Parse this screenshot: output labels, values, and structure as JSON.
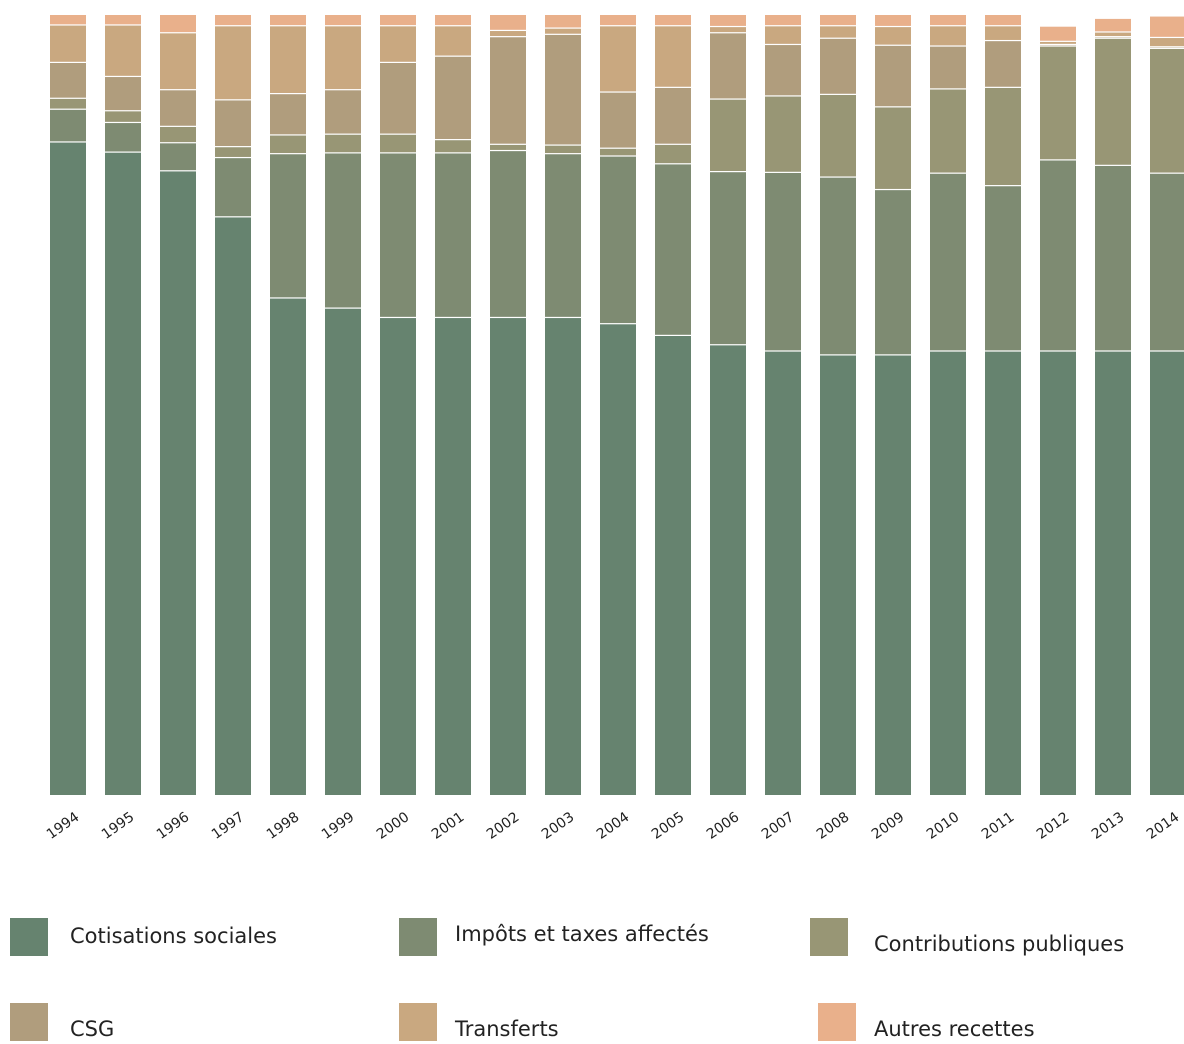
{
  "chart_data": {
    "type": "bar",
    "stacked": true,
    "normalized": true,
    "categories": [
      "1994",
      "1995",
      "1996",
      "1997",
      "1998",
      "1999",
      "2000",
      "2001",
      "2002",
      "2003",
      "2004",
      "2005",
      "2006",
      "2007",
      "2008",
      "2009",
      "2010",
      "2011",
      "2012",
      "2013",
      "2014"
    ],
    "series": [
      {
        "name": "Cotisations sociales",
        "color": "#66836f",
        "values": [
          83.8,
          82.5,
          80.1,
          74.2,
          63.8,
          62.5,
          61.3,
          61.3,
          61.3,
          61.3,
          60.5,
          59.0,
          57.8,
          57.0,
          56.5,
          56.5,
          57.0,
          57.0,
          57.0,
          57.0,
          57.0
        ]
      },
      {
        "name": "Impôts et taxes affectés",
        "color": "#7e8b72",
        "values": [
          4.2,
          3.8,
          3.6,
          7.6,
          18.5,
          19.9,
          21.1,
          21.1,
          21.4,
          21.0,
          21.5,
          22.0,
          22.2,
          22.9,
          22.8,
          21.2,
          22.8,
          21.2,
          24.5,
          23.8,
          22.8
        ]
      },
      {
        "name": "Contributions publiques",
        "color": "#989675",
        "values": [
          1.4,
          1.5,
          2.1,
          1.4,
          2.4,
          2.4,
          2.4,
          1.7,
          0.8,
          1.1,
          1.0,
          2.5,
          9.3,
          9.8,
          10.6,
          10.6,
          10.8,
          12.6,
          14.6,
          16.3,
          16.0
        ]
      },
      {
        "name": "CSG",
        "color": "#b09d7d",
        "values": [
          4.6,
          4.4,
          4.7,
          6.0,
          5.3,
          5.7,
          9.2,
          10.7,
          13.8,
          14.2,
          7.2,
          7.3,
          8.5,
          6.6,
          7.2,
          7.9,
          5.5,
          6.0,
          0.2,
          0.2,
          0.2
        ]
      },
      {
        "name": "Transferts",
        "color": "#c9a880",
        "values": [
          4.8,
          6.6,
          7.3,
          9.5,
          8.7,
          8.2,
          4.7,
          3.9,
          0.8,
          0.8,
          8.5,
          7.9,
          0.8,
          2.4,
          1.6,
          2.4,
          2.6,
          1.9,
          0.4,
          0.6,
          1.2
        ]
      },
      {
        "name": "Autres recettes",
        "color": "#e9b08b",
        "values": [
          1.2,
          1.2,
          2.2,
          1.3,
          1.3,
          1.3,
          1.3,
          1.3,
          1.9,
          1.6,
          1.3,
          1.3,
          1.4,
          1.3,
          1.3,
          1.4,
          1.3,
          1.3,
          1.8,
          1.6,
          2.6
        ]
      }
    ],
    "ylim": [
      0,
      100
    ],
    "title": "",
    "xlabel": "",
    "ylabel": "",
    "grid": false,
    "legend_position": "bottom"
  },
  "legend": [
    {
      "label": "Cotisations sociales",
      "color": "#66836f"
    },
    {
      "label": "Impôts et taxes affectés",
      "color": "#7e8b72"
    },
    {
      "label": "Contributions publiques",
      "color": "#989675"
    },
    {
      "label": "CSG",
      "color": "#b09d7d"
    },
    {
      "label": "Transferts",
      "color": "#c9a880"
    },
    {
      "label": "Autres recettes",
      "color": "#e9b08b"
    }
  ]
}
